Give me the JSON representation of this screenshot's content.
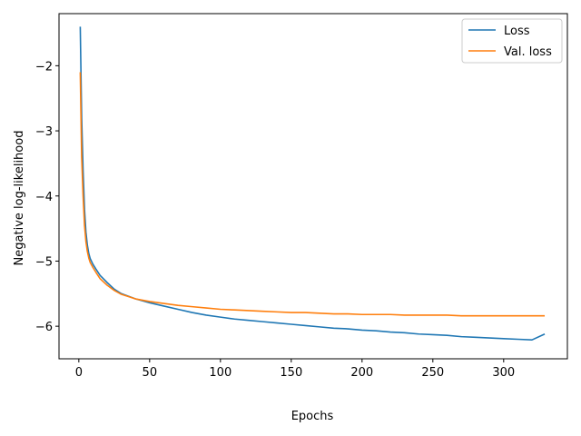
{
  "chart_data": {
    "type": "line",
    "title": "",
    "xlabel": "Epochs",
    "ylabel": "Negative log-likelihood",
    "xlim": [
      -14,
      345
    ],
    "ylim": [
      -6.5,
      -1.2
    ],
    "xticks": [
      0,
      50,
      100,
      150,
      200,
      250,
      300
    ],
    "xtick_labels": [
      "0",
      "50",
      "100",
      "150",
      "200",
      "250",
      "300"
    ],
    "yticks": [
      -6,
      -5,
      -4,
      -3,
      -2
    ],
    "ytick_labels": [
      "−6",
      "−5",
      "−4",
      "−3",
      "−2"
    ],
    "grid": false,
    "legend_position": "top-right",
    "series": [
      {
        "name": "Loss",
        "color": "#1f77b4",
        "x": [
          1,
          2,
          3,
          4,
          5,
          6,
          7,
          8,
          10,
          12,
          15,
          20,
          25,
          30,
          40,
          50,
          60,
          70,
          80,
          90,
          100,
          110,
          120,
          130,
          140,
          150,
          160,
          170,
          180,
          190,
          200,
          210,
          220,
          230,
          240,
          250,
          260,
          270,
          280,
          290,
          300,
          310,
          320,
          329
        ],
        "y": [
          -1.4,
          -2.8,
          -3.6,
          -4.2,
          -4.55,
          -4.75,
          -4.88,
          -4.96,
          -5.05,
          -5.12,
          -5.22,
          -5.33,
          -5.43,
          -5.5,
          -5.58,
          -5.64,
          -5.69,
          -5.74,
          -5.79,
          -5.83,
          -5.86,
          -5.89,
          -5.91,
          -5.93,
          -5.95,
          -5.97,
          -5.99,
          -6.01,
          -6.03,
          -6.04,
          -6.06,
          -6.07,
          -6.09,
          -6.1,
          -6.12,
          -6.13,
          -6.14,
          -6.16,
          -6.17,
          -6.18,
          -6.19,
          -6.2,
          -6.21,
          -6.12
        ]
      },
      {
        "name": "Val. loss",
        "color": "#ff7f0e",
        "x": [
          1,
          2,
          3,
          4,
          5,
          6,
          7,
          8,
          10,
          12,
          15,
          20,
          25,
          30,
          40,
          50,
          60,
          70,
          80,
          90,
          100,
          110,
          120,
          130,
          140,
          150,
          160,
          170,
          180,
          190,
          200,
          210,
          220,
          230,
          240,
          250,
          260,
          270,
          280,
          290,
          300,
          310,
          320,
          329
        ],
        "y": [
          -2.1,
          -3.4,
          -4.0,
          -4.45,
          -4.7,
          -4.85,
          -4.95,
          -5.02,
          -5.1,
          -5.17,
          -5.27,
          -5.37,
          -5.45,
          -5.51,
          -5.58,
          -5.62,
          -5.65,
          -5.68,
          -5.7,
          -5.72,
          -5.74,
          -5.75,
          -5.76,
          -5.77,
          -5.78,
          -5.79,
          -5.79,
          -5.8,
          -5.81,
          -5.81,
          -5.82,
          -5.82,
          -5.82,
          -5.83,
          -5.83,
          -5.83,
          -5.83,
          -5.84,
          -5.84,
          -5.84,
          -5.84,
          -5.84,
          -5.84,
          -5.84
        ]
      }
    ]
  }
}
